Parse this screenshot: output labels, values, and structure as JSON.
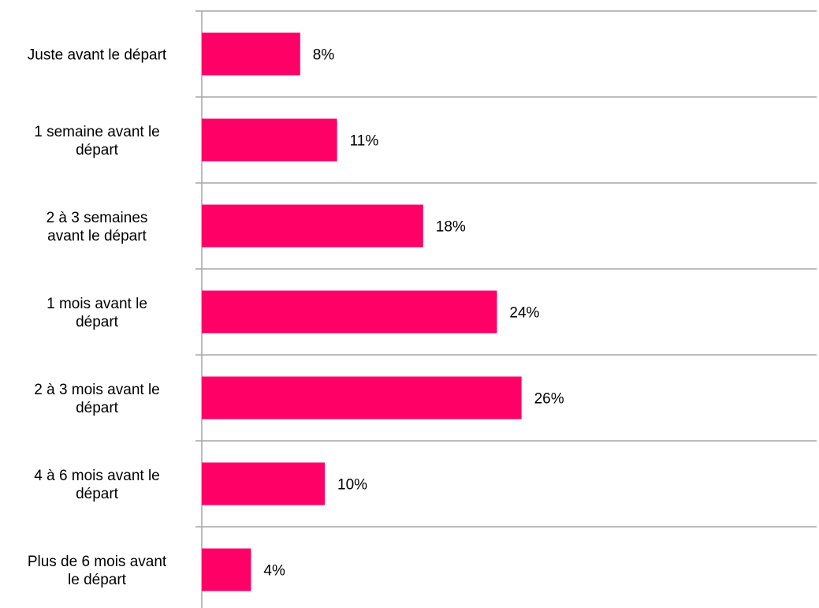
{
  "chart_data": {
    "type": "bar",
    "orientation": "horizontal",
    "categories": [
      [
        "Juste avant le départ"
      ],
      [
        "1 semaine avant le",
        "départ"
      ],
      [
        "2 à 3 semaines",
        "avant le départ"
      ],
      [
        "1 mois avant le",
        "départ"
      ],
      [
        "2 à 3 mois avant le",
        "départ"
      ],
      [
        "4 à 6 mois avant le",
        "départ"
      ],
      [
        "Plus de 6 mois avant",
        "le départ"
      ]
    ],
    "values": [
      8,
      11,
      18,
      24,
      26,
      10,
      4
    ],
    "value_labels": [
      "8%",
      "11%",
      "18%",
      "24%",
      "26%",
      "10%",
      "4%"
    ],
    "xlim": [
      0,
      50
    ],
    "grid": "horizontal separators between categories",
    "bar_color": "#FF0066",
    "gridline_color": "#A6A6A6"
  }
}
